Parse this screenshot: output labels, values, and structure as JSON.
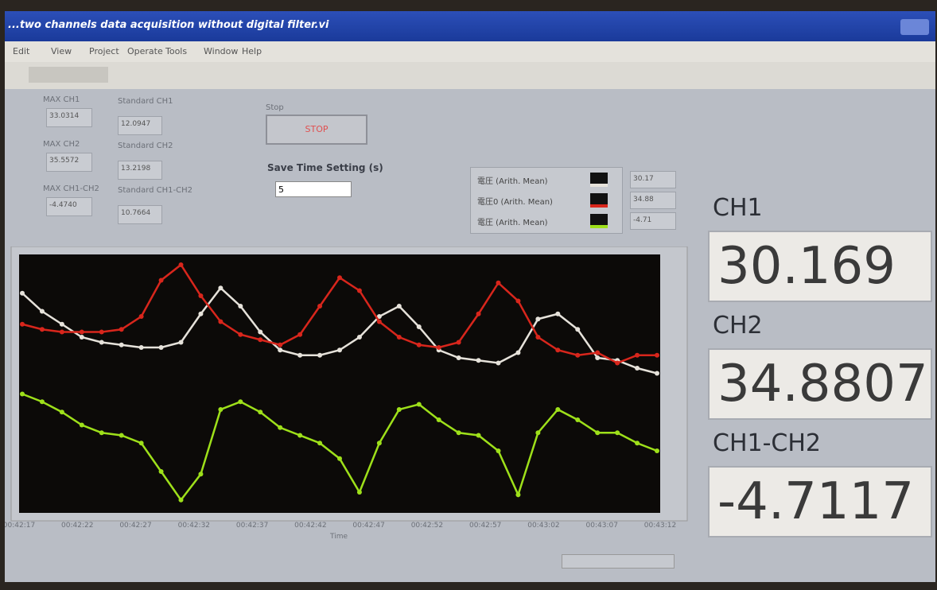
{
  "window": {
    "title": "...two channels data acquisition without digital filter.vi",
    "menu": [
      "Edit",
      "View",
      "Project",
      "Operate",
      "Tools",
      "Window",
      "Help"
    ]
  },
  "panel": {
    "max": [
      {
        "label": "MAX CH1",
        "value": "33.0314"
      },
      {
        "label": "MAX CH2",
        "value": "35.5572"
      },
      {
        "label": "MAX CH1-CH2",
        "value": "-4.4740"
      }
    ],
    "standard": [
      {
        "label": "Standard CH1",
        "value": "12.0947"
      },
      {
        "label": "Standard CH2",
        "value": "13.2198"
      },
      {
        "label": "Standard CH1-CH2",
        "value": "10.7664"
      }
    ],
    "stop": {
      "label": "Stop",
      "button": "STOP"
    },
    "save_time": {
      "label": "Save Time Setting (s)",
      "value": "5"
    },
    "legend": [
      {
        "name": "電圧 (Arith. Mean)",
        "value": "30.17"
      },
      {
        "name": "電圧0 (Arith. Mean)",
        "value": "34.88"
      },
      {
        "name": "電圧 (Arith. Mean)",
        "value": "-4.71"
      }
    ],
    "graph": {
      "xlabel": "Time",
      "xticks": [
        "00:42:17",
        "00:42:22",
        "00:42:27",
        "00:42:32",
        "00:42:37",
        "00:42:42",
        "00:42:47",
        "00:42:52",
        "00:42:57",
        "00:43:02",
        "00:43:07",
        "00:43:12"
      ],
      "ylim": [
        0,
        100
      ],
      "series": [
        {
          "color": "#e6e2da",
          "values": [
            85,
            78,
            73,
            68,
            66,
            65,
            64,
            64,
            66,
            77,
            87,
            80,
            70,
            63,
            61,
            61,
            63,
            68,
            76,
            80,
            72,
            63,
            60,
            59,
            58,
            62,
            75,
            77,
            71,
            60,
            59,
            56,
            54
          ]
        },
        {
          "color": "#d8261c",
          "values": [
            73,
            71,
            70,
            70,
            70,
            71,
            76,
            90,
            96,
            84,
            74,
            69,
            67,
            65,
            69,
            80,
            91,
            86,
            74,
            68,
            65,
            64,
            66,
            77,
            89,
            82,
            68,
            63,
            61,
            62,
            58,
            61,
            61
          ]
        },
        {
          "color": "#9ee01a",
          "values": [
            46,
            43,
            39,
            34,
            31,
            30,
            27,
            16,
            5,
            15,
            40,
            43,
            39,
            33,
            30,
            27,
            21,
            8,
            27,
            40,
            42,
            36,
            31,
            30,
            24,
            7,
            31,
            40,
            36,
            31,
            31,
            27,
            24
          ]
        }
      ]
    },
    "indicators": [
      {
        "label": "CH1",
        "value": "30.169"
      },
      {
        "label": "CH2",
        "value": "34.8807"
      },
      {
        "label": "CH1-CH2",
        "value": "-4.7117"
      }
    ]
  }
}
